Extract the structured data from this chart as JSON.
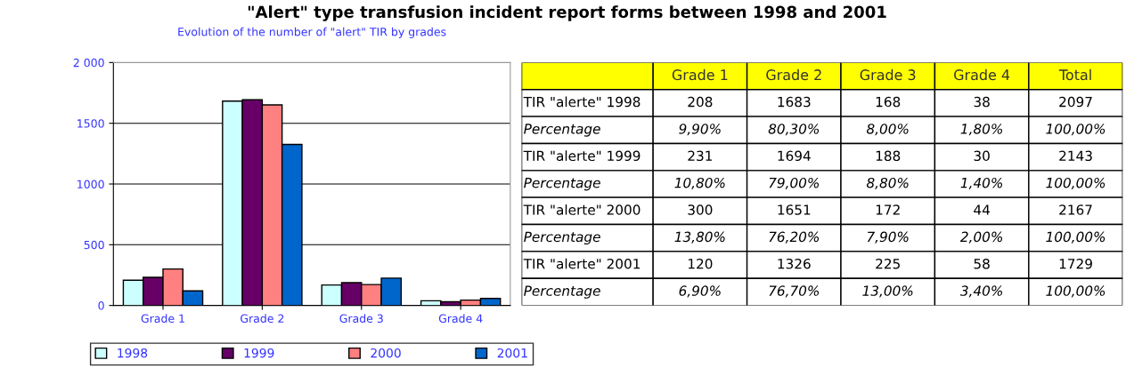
{
  "chart_data": [
    {
      "type": "bar",
      "title": "\"Alert\" type transfusion incident report forms between 1998 and 2001",
      "subtitle": "Evolution of the number of \"alert\" TIR by grades",
      "categories": [
        "Grade 1",
        "Grade 2",
        "Grade 3",
        "Grade 4"
      ],
      "series": [
        {
          "name": "1998",
          "color": "#ccffff",
          "values": [
            208,
            1683,
            168,
            38
          ]
        },
        {
          "name": "1999",
          "color": "#660066",
          "values": [
            231,
            1694,
            188,
            30
          ]
        },
        {
          "name": "2000",
          "color": "#ff8080",
          "values": [
            300,
            1651,
            172,
            44
          ]
        },
        {
          "name": "2001",
          "color": "#0066cc",
          "values": [
            120,
            1326,
            225,
            58
          ]
        }
      ],
      "ylim": [
        0,
        2000
      ],
      "yticks": [
        0,
        500,
        1000,
        1500,
        {
          "value": 2000,
          "label": "2 000"
        }
      ],
      "grid": "y",
      "legend": "bottom"
    },
    {
      "type": "other",
      "categories": [
        "Grade 1",
        "Grade 2",
        "Grade 3",
        "Grade 4",
        "Total"
      ],
      "y_categories": [
        "TIR \"alerte\" 1998",
        "Percentage",
        "TIR \"alerte\" 1999",
        "Percentage",
        "TIR \"alerte\" 2000",
        "Percentage",
        "TIR \"alerte\" 2001",
        "Percentage"
      ],
      "cell_labels": [
        [
          "208",
          "1683",
          "168",
          "38",
          "2097"
        ],
        [
          "9,90%",
          "80,30%",
          "8,00%",
          "1,80%",
          "100,00%"
        ],
        [
          "231",
          "1694",
          "188",
          "30",
          "2143"
        ],
        [
          "10,80%",
          "79,00%",
          "8,80%",
          "1,40%",
          "100,00%"
        ],
        [
          "300",
          "1651",
          "172",
          "44",
          "2167"
        ],
        [
          "13,80%",
          "76,20%",
          "7,90%",
          "2,00%",
          "100,00%"
        ],
        [
          "120",
          "1326",
          "225",
          "58",
          "1729"
        ],
        [
          "6,90%",
          "76,70%",
          "13,00%",
          "3,40%",
          "100,00%"
        ]
      ]
    }
  ]
}
